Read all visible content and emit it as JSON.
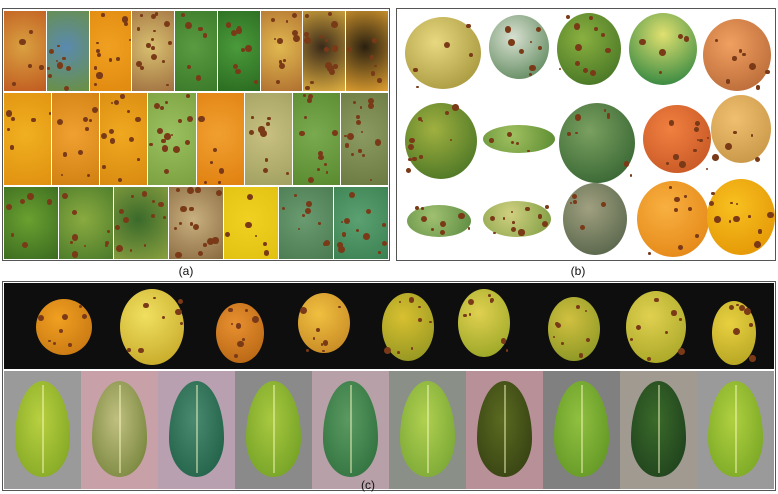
{
  "captions": {
    "a": "(a)",
    "b": "(b)",
    "c": "(c)"
  },
  "panels": {
    "a": {
      "description_icon": "citrus-disease-mosaic"
    },
    "b": {
      "description_icon": "citrus-fruit-collage"
    },
    "c": {
      "description_icon": "citrus-fruit-and-leaf-strip"
    }
  },
  "colors": {
    "orange": "#f0a020",
    "yellow": "#e8d040",
    "green": "#6aa030",
    "dark_green": "#2e6a24",
    "lesion": "#7a3a18",
    "black_bg": "#0e0e0e"
  }
}
